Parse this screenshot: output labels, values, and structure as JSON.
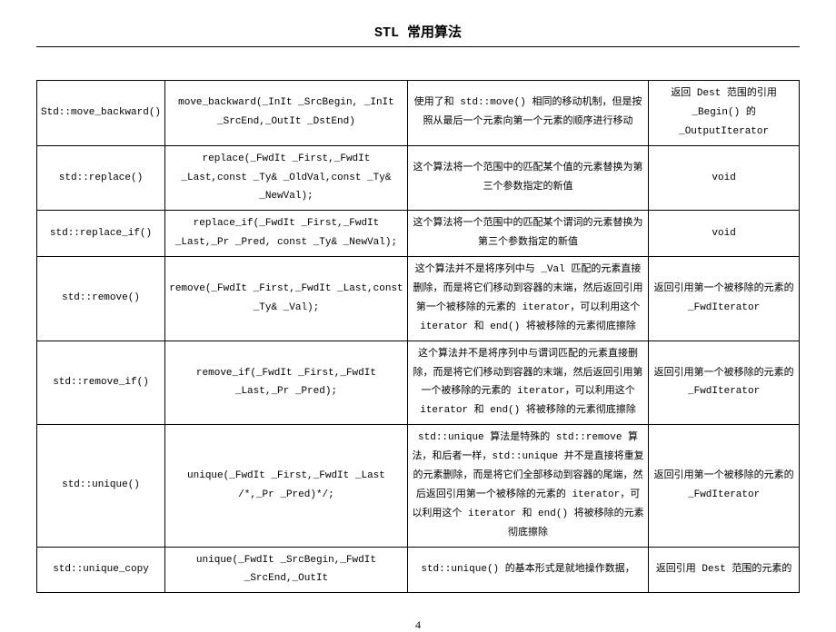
{
  "doc": {
    "title": "STL 常用算法",
    "page_number": "4"
  },
  "rows": [
    {
      "fn": "Std::move_backward()",
      "sig": "move_backward(_InIt _SrcBegin, _InIt _SrcEnd,_OutIt _DstEnd)",
      "desc": "使用了和 std::move() 相同的移动机制，但是按照从最后一个元素向第一个元素的顺序进行移动",
      "ret": "返回 Dest 范围的引用 _Begin() 的 _OutputIterator"
    },
    {
      "fn": "std::replace()",
      "sig": "replace(_FwdIt _First,_FwdIt _Last,const _Ty& _OldVal,const _Ty& _NewVal);",
      "desc": "这个算法将一个范围中的匹配某个值的元素替换为第三个参数指定的新值",
      "ret": "void"
    },
    {
      "fn": "std::replace_if()",
      "sig": "replace_if(_FwdIt _First,_FwdIt _Last,_Pr _Pred, const _Ty& _NewVal);",
      "desc": "这个算法将一个范围中的匹配某个谓词的元素替换为第三个参数指定的新值",
      "ret": "void"
    },
    {
      "fn": "std::remove()",
      "sig": "remove(_FwdIt _First,_FwdIt _Last,const _Ty& _Val);",
      "desc": "这个算法并不是将序列中与 _Val 匹配的元素直接删除，而是将它们移动到容器的末端，然后返回引用第一个被移除的元素的 iterator，可以利用这个 iterator 和 end() 将被移除的元素彻底擦除",
      "ret": "返回引用第一个被移除的元素的 _FwdIterator"
    },
    {
      "fn": "std::remove_if()",
      "sig": "remove_if(_FwdIt _First,_FwdIt _Last,_Pr _Pred);",
      "desc": "这个算法并不是将序列中与谓词匹配的元素直接删除，而是将它们移动到容器的末端，然后返回引用第一个被移除的元素的 iterator，可以利用这个 iterator 和 end() 将被移除的元素彻底擦除",
      "ret": "返回引用第一个被移除的元素的 _FwdIterator"
    },
    {
      "fn": "std::unique()",
      "sig": "unique(_FwdIt _First,_FwdIt _Last /*,_Pr _Pred)*/;",
      "desc": "std::unique 算法是特殊的 std::remove 算法，和后者一样，std::unique 并不是直接将重复的元素删除，而是将它们全部移动到容器的尾端，然后返回引用第一个被移除的元素的 iterator，可以利用这个 iterator 和 end() 将被移除的元素彻底擦除",
      "ret": "返回引用第一个被移除的元素的 _FwdIterator"
    },
    {
      "fn": "std::unique_copy",
      "sig": "unique(_FwdIt _SrcBegin,_FwdIt _SrcEnd,_OutIt",
      "desc": "std::unique() 的基本形式是就地操作数据，",
      "ret": "返回引用 Dest 范围的元素的"
    }
  ]
}
